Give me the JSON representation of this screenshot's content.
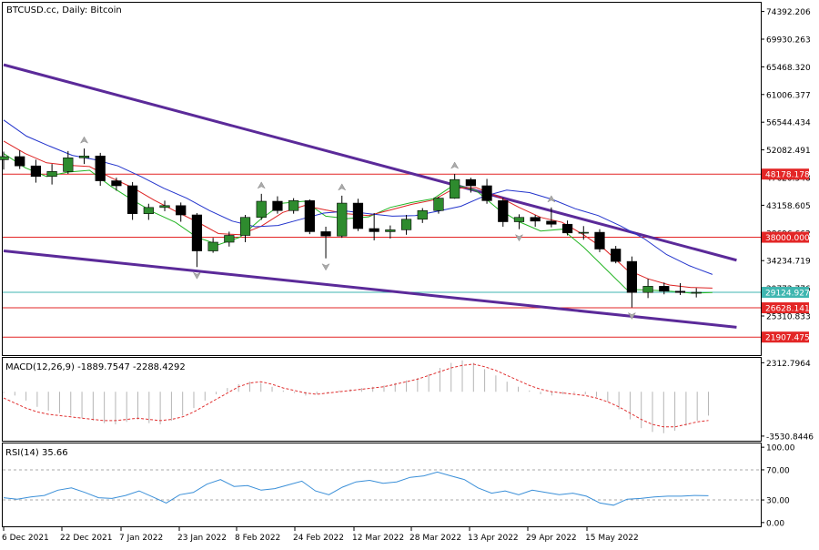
{
  "chart_data": [
    {
      "type": "candlestick",
      "title": "BTCUSD.cc, Daily:  Bitcoin",
      "ylim": [
        19000,
        75800
      ],
      "y_ticks": [
        "74392.206",
        "69930.263",
        "65468.320",
        "61006.377",
        "56544.434",
        "52082.491",
        "47620.548",
        "43158.605",
        "38696.662",
        "34234.719",
        "29772.776",
        "25310.833"
      ],
      "x_ticks": [
        "6 Dec 2021",
        "22 Dec 2021",
        "7 Jan 2022",
        "23 Jan 2022",
        "8 Feb 2022",
        "24 Feb 2022",
        "12 Mar 2022",
        "28 Mar 2022",
        "13 Apr 2022",
        "29 Apr 2022",
        "15 May 2022"
      ],
      "horizontal_levels": [
        {
          "value": 48178.178,
          "label": "48178.178",
          "color": "#e32626"
        },
        {
          "value": 38000.0,
          "label": "38000.000",
          "color": "#e32626"
        },
        {
          "value": 29124.927,
          "label": "29124.927",
          "color": "#3fb6b0"
        },
        {
          "value": 26628.141,
          "label": "26628.141",
          "color": "#e32626"
        },
        {
          "value": 21907.475,
          "label": "21907.475",
          "color": "#e32626"
        }
      ],
      "trendlines": [
        {
          "from": [
            "2021-12-06",
            65800
          ],
          "to": [
            "2022-06-06",
            34300
          ],
          "color": "#5b2a99"
        },
        {
          "from": [
            "2021-12-06",
            35800
          ],
          "to": [
            "2022-06-06",
            23500
          ],
          "color": "#5b2a99"
        }
      ],
      "moving_averages": [
        {
          "color": "#22b422",
          "values": [
            51500,
            49200,
            47800,
            48500,
            48800,
            46200,
            44000,
            42000,
            40400,
            38000,
            36800,
            38000,
            41000,
            43500,
            43800,
            41400,
            41000,
            41300,
            42800,
            43600,
            44200,
            46500,
            45500,
            42600,
            40500,
            39000,
            39300,
            36400,
            33000,
            29600,
            29500,
            29300,
            29000,
            29100
          ]
        },
        {
          "color": "#dd2222",
          "values": [
            53500,
            51500,
            50000,
            49600,
            49400,
            47600,
            46000,
            44000,
            42200,
            40500,
            38600,
            38400,
            39800,
            42000,
            43100,
            42400,
            41800,
            41500,
            42400,
            43300,
            44000,
            45900,
            46000,
            44600,
            42800,
            41200,
            40400,
            38400,
            36000,
            32800,
            31300,
            30300,
            29900,
            29800
          ]
        },
        {
          "color": "#2233cc",
          "values": [
            56900,
            54300,
            52700,
            51200,
            50500,
            49500,
            47800,
            45900,
            44300,
            42300,
            40600,
            39700,
            39900,
            40900,
            41900,
            42200,
            41800,
            41400,
            41500,
            42200,
            43000,
            44600,
            45600,
            45200,
            44100,
            42600,
            41500,
            39800,
            37800,
            35200,
            33400,
            32000
          ]
        }
      ],
      "candles": [
        {
          "date": "2021-12-06",
          "open": 50500,
          "high": 51800,
          "low": 48900,
          "close": 51000
        },
        {
          "date": "2021-12-10",
          "open": 51000,
          "high": 52000,
          "low": 49000,
          "close": 49500
        },
        {
          "date": "2021-12-14",
          "open": 49500,
          "high": 50500,
          "low": 46800,
          "close": 47800
        },
        {
          "date": "2021-12-18",
          "open": 47800,
          "high": 49800,
          "low": 46500,
          "close": 48600
        },
        {
          "date": "2021-12-22",
          "open": 48600,
          "high": 51900,
          "low": 48200,
          "close": 50800
        },
        {
          "date": "2021-12-26",
          "open": 50800,
          "high": 52300,
          "low": 49800,
          "close": 51100
        },
        {
          "date": "2021-12-30",
          "open": 51100,
          "high": 51600,
          "low": 46300,
          "close": 47100
        },
        {
          "date": "2022-01-03",
          "open": 47100,
          "high": 47600,
          "low": 45500,
          "close": 46300
        },
        {
          "date": "2022-01-07",
          "open": 46300,
          "high": 46900,
          "low": 40800,
          "close": 41800
        },
        {
          "date": "2022-01-11",
          "open": 41800,
          "high": 43400,
          "low": 40800,
          "close": 42800
        },
        {
          "date": "2022-01-15",
          "open": 42800,
          "high": 43900,
          "low": 42200,
          "close": 43100
        },
        {
          "date": "2022-01-19",
          "open": 43100,
          "high": 43600,
          "low": 40500,
          "close": 41600
        },
        {
          "date": "2022-01-23",
          "open": 41600,
          "high": 41900,
          "low": 33200,
          "close": 35800
        },
        {
          "date": "2022-01-27",
          "open": 35800,
          "high": 37900,
          "low": 35500,
          "close": 37200
        },
        {
          "date": "2022-01-31",
          "open": 37200,
          "high": 38900,
          "low": 36500,
          "close": 38300
        },
        {
          "date": "2022-02-04",
          "open": 38300,
          "high": 41600,
          "low": 37200,
          "close": 41200
        },
        {
          "date": "2022-02-08",
          "open": 41200,
          "high": 45000,
          "low": 40800,
          "close": 43800
        },
        {
          "date": "2022-02-12",
          "open": 43800,
          "high": 44600,
          "low": 41800,
          "close": 42300
        },
        {
          "date": "2022-02-16",
          "open": 42300,
          "high": 44300,
          "low": 41800,
          "close": 43900
        },
        {
          "date": "2022-02-20",
          "open": 43900,
          "high": 44100,
          "low": 38500,
          "close": 38900
        },
        {
          "date": "2022-02-24",
          "open": 38900,
          "high": 39700,
          "low": 34600,
          "close": 38200
        },
        {
          "date": "2022-02-28",
          "open": 38200,
          "high": 44700,
          "low": 37900,
          "close": 43500
        },
        {
          "date": "2022-03-04",
          "open": 43500,
          "high": 44200,
          "low": 39000,
          "close": 39400
        },
        {
          "date": "2022-03-08",
          "open": 39400,
          "high": 41900,
          "low": 37500,
          "close": 38900
        },
        {
          "date": "2022-03-12",
          "open": 38900,
          "high": 39900,
          "low": 37800,
          "close": 39200
        },
        {
          "date": "2022-03-16",
          "open": 39200,
          "high": 41600,
          "low": 38400,
          "close": 40900
        },
        {
          "date": "2022-03-20",
          "open": 40900,
          "high": 42700,
          "low": 40300,
          "close": 42300
        },
        {
          "date": "2022-03-24",
          "open": 42300,
          "high": 44500,
          "low": 41800,
          "close": 44300
        },
        {
          "date": "2022-03-28",
          "open": 44300,
          "high": 48200,
          "low": 44200,
          "close": 47300
        },
        {
          "date": "2022-04-01",
          "open": 47300,
          "high": 47600,
          "low": 45200,
          "close": 46300
        },
        {
          "date": "2022-04-05",
          "open": 46300,
          "high": 47400,
          "low": 43400,
          "close": 43900
        },
        {
          "date": "2022-04-09",
          "open": 43900,
          "high": 44300,
          "low": 39700,
          "close": 40500
        },
        {
          "date": "2022-04-13",
          "open": 40500,
          "high": 41700,
          "low": 39300,
          "close": 41200
        },
        {
          "date": "2022-04-17",
          "open": 41200,
          "high": 41600,
          "low": 39700,
          "close": 40600
        },
        {
          "date": "2022-04-21",
          "open": 40600,
          "high": 42800,
          "low": 39600,
          "close": 40100
        },
        {
          "date": "2022-04-25",
          "open": 40100,
          "high": 40700,
          "low": 38300,
          "close": 38700
        },
        {
          "date": "2022-04-29",
          "open": 38700,
          "high": 39800,
          "low": 37600,
          "close": 38800
        },
        {
          "date": "2022-05-03",
          "open": 38800,
          "high": 39300,
          "low": 35600,
          "close": 36100
        },
        {
          "date": "2022-05-07",
          "open": 36100,
          "high": 36600,
          "low": 33800,
          "close": 34100
        },
        {
          "date": "2022-05-11",
          "open": 34100,
          "high": 34900,
          "low": 26700,
          "close": 29100
        },
        {
          "date": "2022-05-15",
          "open": 29100,
          "high": 31300,
          "low": 28200,
          "close": 30100
        },
        {
          "date": "2022-05-19",
          "open": 30100,
          "high": 30700,
          "low": 28800,
          "close": 29300
        },
        {
          "date": "2022-05-23",
          "open": 29300,
          "high": 30600,
          "low": 28700,
          "close": 29100
        },
        {
          "date": "2022-05-27",
          "open": 29100,
          "high": 29800,
          "low": 28300,
          "close": 29124.927
        }
      ],
      "fractals_up": [
        {
          "date": "2021-12-26",
          "value": 52300
        },
        {
          "date": "2022-02-08",
          "value": 45000
        },
        {
          "date": "2022-02-28",
          "value": 44700
        },
        {
          "date": "2022-03-28",
          "value": 48200
        },
        {
          "date": "2022-04-21",
          "value": 42800
        }
      ],
      "fractals_down": [
        {
          "date": "2022-01-23",
          "value": 33200
        },
        {
          "date": "2022-02-24",
          "value": 34600
        },
        {
          "date": "2022-04-13",
          "value": 39300
        },
        {
          "date": "2022-05-11",
          "value": 26700
        }
      ]
    },
    {
      "type": "histogram",
      "title": "MACD(12,26,9) -1889.7547 -2288.4292",
      "ylim": [
        -3900,
        2700
      ],
      "y_ticks": [
        "2312.7964",
        "-3530.8446"
      ],
      "histogram": [
        -100,
        -300,
        -700,
        -1200,
        -1500,
        -1700,
        -1900,
        -2100,
        -2300,
        -2500,
        -2600,
        -2400,
        -2200,
        -2500,
        -2600,
        -2300,
        -1900,
        -1300,
        -700,
        -200,
        300,
        600,
        800,
        700,
        400,
        100,
        -100,
        -300,
        -200,
        -100,
        100,
        200,
        300,
        400,
        500,
        700,
        900,
        1100,
        1400,
        1900,
        2300,
        2500,
        2300,
        1800,
        1300,
        800,
        400,
        100,
        -200,
        -300,
        -200,
        -100,
        -200,
        -400,
        -800,
        -1400,
        -2200,
        -2900,
        -3200,
        -3300,
        -3100,
        -2700,
        -2300,
        -1900
      ],
      "signal": [
        -500,
        -900,
        -1300,
        -1600,
        -1800,
        -1900,
        -2000,
        -2100,
        -2200,
        -2300,
        -2300,
        -2200,
        -2100,
        -2200,
        -2300,
        -2200,
        -2000,
        -1600,
        -1100,
        -600,
        -100,
        400,
        700,
        800,
        600,
        300,
        100,
        -100,
        -200,
        -100,
        0,
        100,
        200,
        300,
        400,
        600,
        800,
        1000,
        1300,
        1600,
        1900,
        2100,
        2200,
        2000,
        1700,
        1300,
        900,
        500,
        200,
        0,
        -100,
        -200,
        -300,
        -500,
        -800,
        -1200,
        -1700,
        -2200,
        -2600,
        -2800,
        -2800,
        -2600,
        -2400,
        -2288
      ]
    },
    {
      "type": "line",
      "title": "RSI(14) 35.66",
      "ylim": [
        -5,
        105
      ],
      "y_ticks": [
        "100.00",
        "70.00",
        "30.00",
        "0.00"
      ],
      "levels": [
        70,
        30
      ],
      "values": [
        33,
        31,
        34,
        36,
        43,
        46,
        40,
        33,
        32,
        36,
        42,
        34,
        26,
        37,
        40,
        51,
        57,
        48,
        49,
        43,
        45,
        50,
        55,
        42,
        37,
        47,
        54,
        56,
        52,
        54,
        60,
        62,
        67,
        62,
        57,
        46,
        39,
        42,
        37,
        43,
        40,
        37,
        39,
        35,
        26,
        23,
        31,
        32,
        34,
        35,
        35,
        36,
        35.66
      ]
    }
  ]
}
